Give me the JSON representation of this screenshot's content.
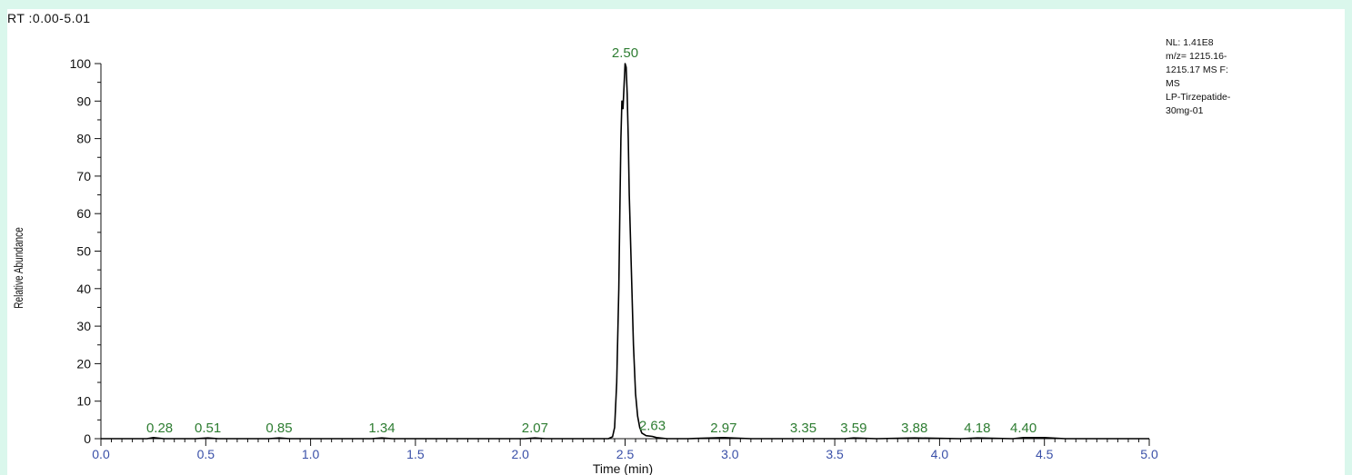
{
  "header": {
    "rt_range": "RT :0.00-5.01"
  },
  "info_block": {
    "lines": [
      "NL: 1.41E8",
      "m/z= 1215.16-",
      "1215.17 MS  F:",
      "MS",
      "LP-Tirzepatide-",
      "30mg-01"
    ]
  },
  "colors": {
    "background": "#daf7ec",
    "trace": "#000000",
    "peak_label": "#2e7d32",
    "x_tick_label": "#3a50a8"
  },
  "chart_data": {
    "type": "line",
    "xlabel": "Time (min)",
    "ylabel": "Relative Abundance",
    "xlim": [
      0.0,
      5.0
    ],
    "ylim": [
      0,
      100
    ],
    "x_ticks": [
      "0.0",
      "0.5",
      "1.0",
      "1.5",
      "2.0",
      "2.5",
      "3.0",
      "3.5",
      "4.0",
      "4.5",
      "5.0"
    ],
    "y_ticks": [
      "0",
      "10",
      "20",
      "30",
      "40",
      "50",
      "60",
      "70",
      "80",
      "90",
      "100"
    ],
    "grid": false,
    "series": [
      {
        "x": [
          0.0,
          0.22,
          0.25,
          0.3,
          0.45,
          0.51,
          0.56,
          0.8,
          0.85,
          0.9,
          1.29,
          1.34,
          1.39,
          2.02,
          2.07,
          2.12,
          2.42,
          2.44,
          2.45,
          2.46,
          2.47,
          2.475,
          2.48,
          2.485,
          2.49,
          2.5,
          2.505,
          2.51,
          2.515,
          2.52,
          2.53,
          2.54,
          2.55,
          2.56,
          2.57,
          2.58,
          2.6,
          2.63,
          2.65,
          2.7,
          2.8,
          2.97,
          3.1,
          3.35,
          3.55,
          3.59,
          3.7,
          3.88,
          4.1,
          4.18,
          4.35,
          4.4,
          4.5,
          4.6,
          5.0
        ],
        "y": [
          0,
          0,
          0.3,
          0,
          0,
          0.2,
          0,
          0,
          0.2,
          0,
          0,
          0.2,
          0,
          0,
          0.2,
          0,
          0,
          0.5,
          3,
          15,
          40,
          60,
          80,
          90,
          88,
          100,
          99,
          92,
          80,
          65,
          45,
          25,
          12,
          6,
          3,
          1.5,
          0.8,
          0.6,
          0.3,
          0,
          0,
          0.3,
          0,
          0,
          0,
          0.2,
          0,
          0.2,
          0,
          0.2,
          0,
          0.3,
          0.3,
          0,
          0
        ]
      }
    ],
    "peak_labels": [
      {
        "x": 0.28,
        "y": 0,
        "text": "0.28"
      },
      {
        "x": 0.51,
        "y": 0,
        "text": "0.51"
      },
      {
        "x": 0.85,
        "y": 0,
        "text": "0.85"
      },
      {
        "x": 1.34,
        "y": 0,
        "text": "1.34"
      },
      {
        "x": 2.07,
        "y": 0,
        "text": "2.07"
      },
      {
        "x": 2.5,
        "y": 100,
        "text": "2.50"
      },
      {
        "x": 2.63,
        "y": 0.6,
        "text": "2.63"
      },
      {
        "x": 2.97,
        "y": 0,
        "text": "2.97"
      },
      {
        "x": 3.35,
        "y": 0,
        "text": "3.35"
      },
      {
        "x": 3.59,
        "y": 0,
        "text": "3.59"
      },
      {
        "x": 3.88,
        "y": 0,
        "text": "3.88"
      },
      {
        "x": 4.18,
        "y": 0,
        "text": "4.18"
      },
      {
        "x": 4.4,
        "y": 0,
        "text": "4.40"
      }
    ]
  }
}
